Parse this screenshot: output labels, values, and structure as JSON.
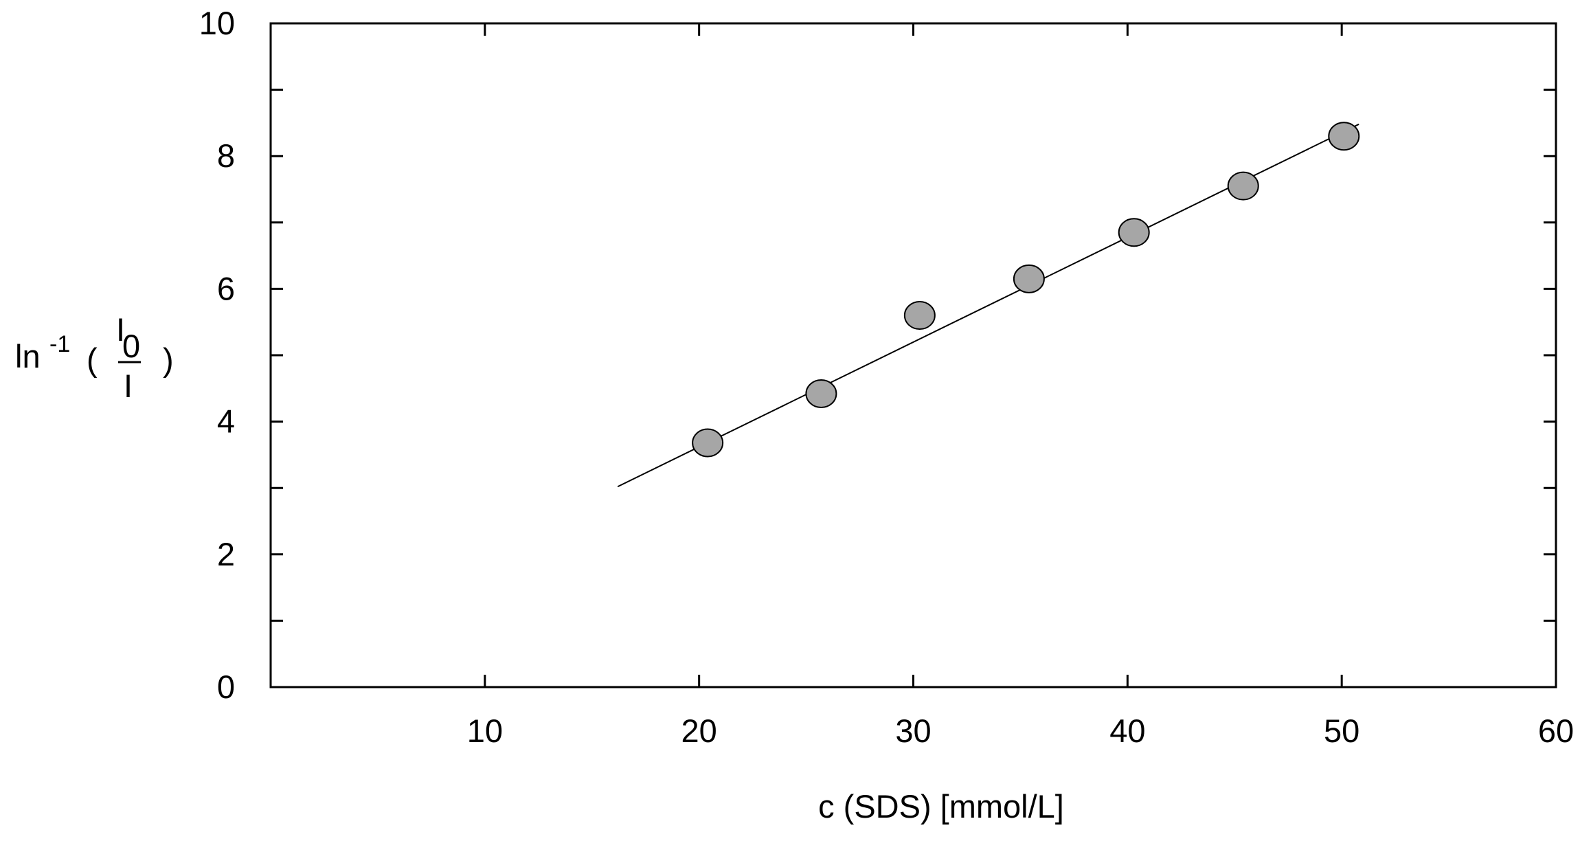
{
  "chart_data": {
    "type": "scatter",
    "title": "",
    "xlabel": "c (SDS) [mmol/L]",
    "ylabel": {
      "prefix": "ln",
      "superscript": "-1",
      "open_paren": "(",
      "numerator": "I",
      "numerator_subscript": "0",
      "denominator": "I",
      "close_paren": ")"
    },
    "xlim": [
      0,
      60
    ],
    "ylim": [
      0,
      10
    ],
    "xticks": [
      10,
      20,
      30,
      40,
      50,
      60
    ],
    "yticks": [
      0,
      2,
      4,
      6,
      8,
      10
    ],
    "x_minor_step": 10,
    "y_minor_step": 1,
    "grid": false,
    "legend": "none",
    "series": [
      {
        "points": [
          {
            "x": 20.4,
            "y": 3.68
          },
          {
            "x": 25.7,
            "y": 4.42
          },
          {
            "x": 30.3,
            "y": 5.6
          },
          {
            "x": 35.4,
            "y": 6.15
          },
          {
            "x": 40.3,
            "y": 6.85
          },
          {
            "x": 45.4,
            "y": 7.55
          },
          {
            "x": 50.1,
            "y": 8.3
          }
        ],
        "marker_color": "#a6a6a6"
      }
    ],
    "fit_line": {
      "x": [
        16.2,
        50.8
      ],
      "y": [
        3.02,
        8.48
      ],
      "color": "#000000"
    }
  }
}
